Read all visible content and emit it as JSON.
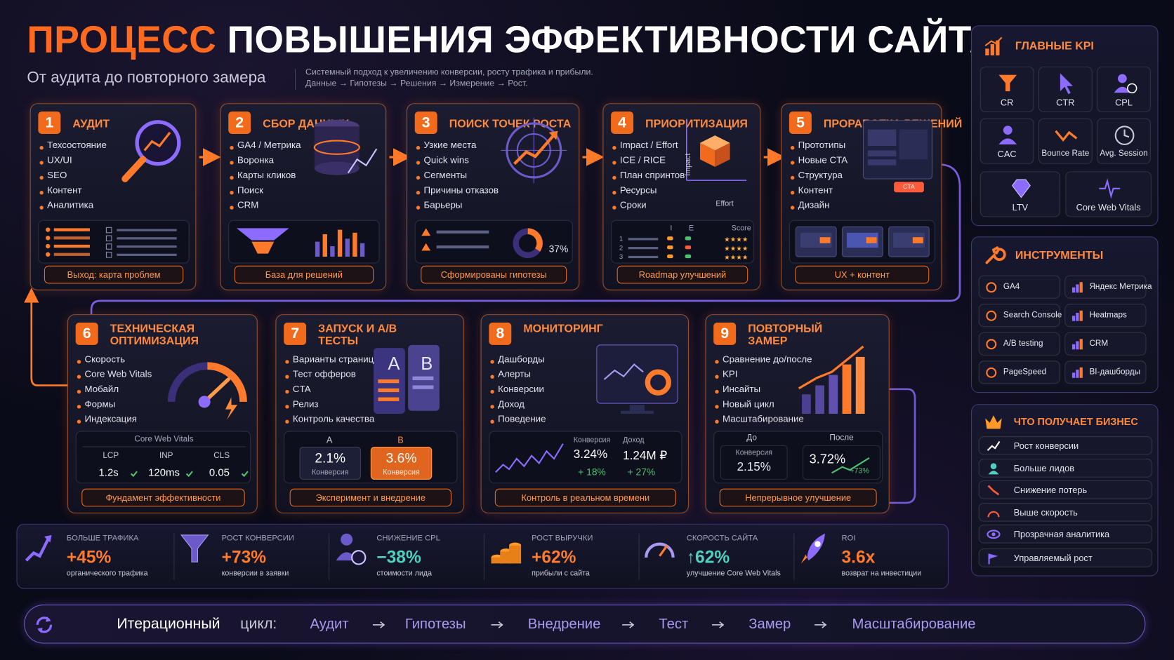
{
  "header": {
    "title_accent": "ПРОЦЕСС",
    "title": "ПОВЫШЕНИЯ ЭФФЕКТИВНОСТИ САЙТА",
    "subtitle": "От аудита до повторного замера",
    "description": [
      "Системный подход к увеличению конверсии, росту трафика и прибыли.",
      "Данные → Гипотезы → Решения → Измерение → Рост."
    ]
  },
  "steps": [
    {
      "number": 1,
      "title": "АУДИТ",
      "items": [
        "Техсостояние",
        "UX/UI",
        "SEO",
        "Контент",
        "Аналитика"
      ],
      "output": "Выход: карта проблем"
    },
    {
      "number": 2,
      "title": "СБОР ДАННЫХ",
      "items": [
        "GA4 / Метрика",
        "Воронка",
        "Карты кликов",
        "Поиск",
        "CRM"
      ],
      "output": "База для решений"
    },
    {
      "number": 3,
      "title": "ПОИСК ТОЧЕК РОСТА",
      "items": [
        "Узкие места",
        "Quick wins",
        "Сегменты",
        "Причины отказов",
        "Барьеры"
      ],
      "output": "Сформированы гипотезы",
      "donut_label": "37%"
    },
    {
      "number": 4,
      "title": "ПРИОРИТИЗАЦИЯ",
      "items": [
        "Impact / Effort",
        "ICE / RICE",
        "План спринтов",
        "Ресурсы",
        "Сроки"
      ],
      "output": "Roadmap улучшений",
      "chart_axes": [
        "Impact",
        "Effort"
      ],
      "table": {
        "headers": [
          "I",
          "E",
          "Score"
        ],
        "rows": [
          "1",
          "2",
          "3"
        ]
      }
    },
    {
      "number": 5,
      "title": "ПРОРАБОТКА РЕШЕНИЙ",
      "items": [
        "Прототипы",
        "Новые CTA",
        "Структура",
        "Контент",
        "Дизайн"
      ],
      "output": "UX + контент",
      "button": "CTA"
    },
    {
      "number": 6,
      "title": "ТЕХНИЧЕСКАЯ ОПТИМИЗАЦИЯ",
      "items": [
        "Скорость",
        "Core Web Vitals",
        "Мобайл",
        "Формы",
        "Индексация"
      ],
      "output": "Фундамент эффективности",
      "panel": {
        "title": "Core Web Vitals",
        "metrics": [
          {
            "name": "LCP",
            "value": "1.2s"
          },
          {
            "name": "INP",
            "value": "120ms"
          },
          {
            "name": "CLS",
            "value": "0.05"
          }
        ]
      }
    },
    {
      "number": 7,
      "title": "ЗАПУСК И A/B ТЕСТЫ",
      "items": [
        "Варианты страниц",
        "Тест офферов",
        "CTA",
        "Релиз",
        "Контроль качества"
      ],
      "output": "Эксперимент и внедрение",
      "icon_labels": [
        "A",
        "B"
      ],
      "variants": [
        {
          "label": "A",
          "value": "2.1%",
          "caption": "Конверсия"
        },
        {
          "label": "B",
          "value": "3.6%",
          "caption": "Конверсия"
        }
      ]
    },
    {
      "number": 8,
      "title": "МОНИТОРИНГ",
      "items": [
        "Дашборды",
        "Алерты",
        "Конверсии",
        "Доход",
        "Поведение"
      ],
      "output": "Контроль в реальном времени",
      "metrics": [
        {
          "label": "Конверсия",
          "value": "3.24%",
          "delta": "+ 18%"
        },
        {
          "label": "Доход",
          "value": "1.24M ₽",
          "delta": "+ 27%"
        }
      ]
    },
    {
      "number": 9,
      "title": "ПОВТОРНЫЙ ЗАМЕР",
      "items": [
        "Сравнение до/после",
        "KPI",
        "Инсайты",
        "Новый цикл",
        "Масштабирование"
      ],
      "output": "Непрерывное улучшение",
      "before": {
        "label": "До",
        "metric": "Конверсия",
        "value": "2.15%"
      },
      "after": {
        "label": "После",
        "value": "3.72%",
        "delta": "+73%"
      }
    }
  ],
  "kpi": {
    "title": "ГЛАВНЫЕ KPI",
    "items": [
      "CR",
      "CTR",
      "CPL",
      "CAC",
      "Bounce Rate",
      "Avg. Session",
      "LTV",
      "Core Web Vitals"
    ]
  },
  "tools": {
    "title": "ИНСТРУМЕНТЫ",
    "items": [
      "GA4",
      "Яндекс Метрика",
      "Search Console",
      "Heatmaps",
      "A/B testing",
      "CRM",
      "PageSpeed",
      "BI-дашборды"
    ]
  },
  "business": {
    "title": "ЧТО ПОЛУЧАЕТ БИЗНЕС",
    "items": [
      "Рост конверсии",
      "Больше лидов",
      "Снижение потерь",
      "Выше скорость",
      "Прозрачная аналитика",
      "Управляемый рост"
    ]
  },
  "stats": [
    {
      "title": "БОЛЬШЕ ТРАФИКА",
      "value": "+45%",
      "caption": "органического трафика",
      "color": "#ff7a2a"
    },
    {
      "title": "РОСТ КОНВЕРСИИ",
      "value": "+73%",
      "caption": "конверсии в заявки",
      "color": "#ff7a2a"
    },
    {
      "title": "СНИЖЕНИЕ CPL",
      "value": "−38%",
      "caption": "стоимости лида",
      "color": "#4fd1c0"
    },
    {
      "title": "РОСТ ВЫРУЧКИ",
      "value": "+62%",
      "caption": "прибыли с сайта",
      "color": "#ff7a2a"
    },
    {
      "title": "СКОРОСТЬ САЙТА",
      "value": "↑62%",
      "caption": "улучшение Core Web Vitals",
      "color": "#4fd1c0"
    },
    {
      "title": "ROI",
      "value": "3.6x",
      "caption": "возврат на инвестиции",
      "color": "#ff7a2a"
    }
  ],
  "cycle": {
    "label": "Итерационный",
    "label2": "цикл:",
    "steps": [
      "Аудит",
      "Гипотезы",
      "Внедрение",
      "Тест",
      "Замер",
      "Масштабирование"
    ]
  }
}
